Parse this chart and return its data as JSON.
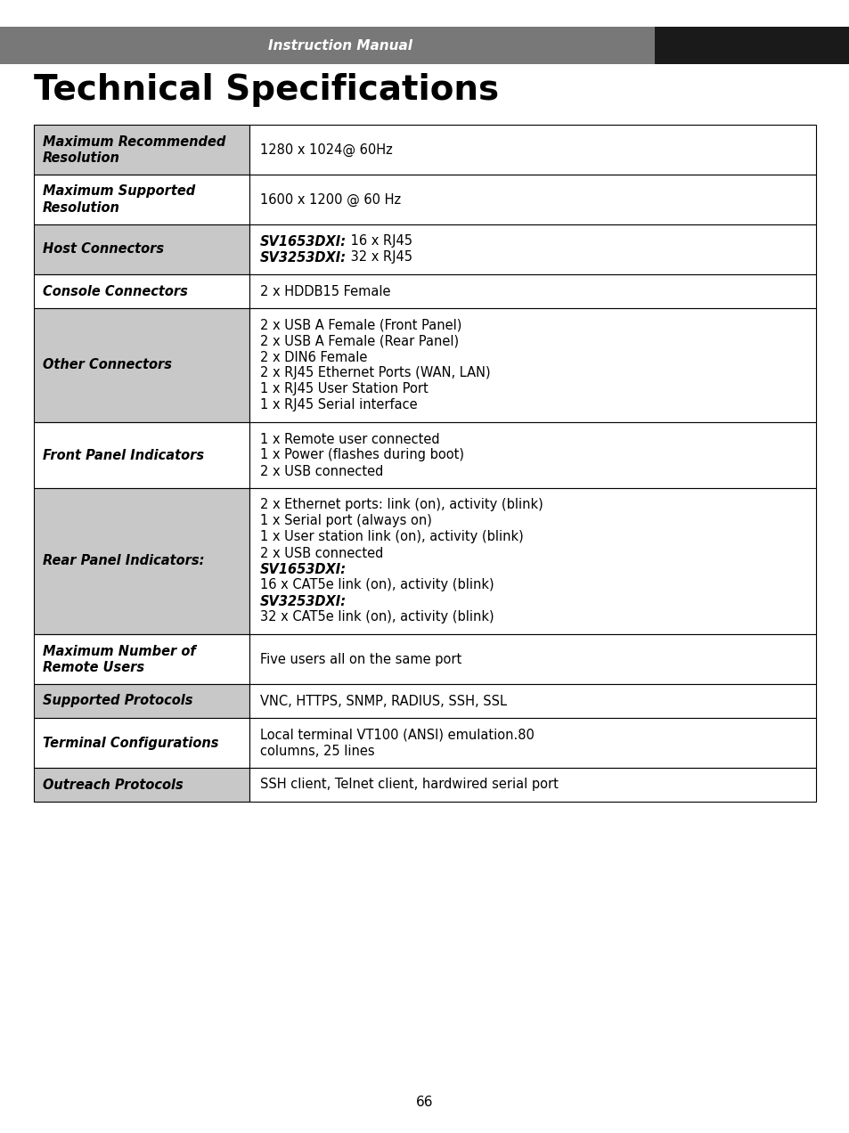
{
  "page_bg": "#ffffff",
  "header_bar_color1": "#787878",
  "header_bar_color2": "#1a1a1a",
  "header_text": "Instruction Manual",
  "title": "Technical Specifications",
  "left_col_bg": "#c8c8c8",
  "right_col_bg": "#ffffff",
  "border_color": "#000000",
  "page_number": "66",
  "rows": [
    {
      "left": "Maximum Recommended\nResolution",
      "right_lines": [
        [
          {
            "bold": false,
            "italic": false,
            "text": "1280 x 1024@ 60Hz"
          }
        ]
      ]
    },
    {
      "left": "Maximum Supported\nResolution",
      "right_lines": [
        [
          {
            "bold": false,
            "italic": false,
            "text": "1600 x 1200 @ 60 Hz"
          }
        ]
      ]
    },
    {
      "left": "Host Connectors",
      "right_lines": [
        [
          {
            "bold": true,
            "italic": true,
            "text": "SV1653DXI:"
          },
          {
            "bold": false,
            "italic": false,
            "text": " 16 x RJ45"
          }
        ],
        [
          {
            "bold": true,
            "italic": true,
            "text": "SV3253DXI:"
          },
          {
            "bold": false,
            "italic": false,
            "text": " 32 x RJ45"
          }
        ]
      ]
    },
    {
      "left": "Console Connectors",
      "right_lines": [
        [
          {
            "bold": false,
            "italic": false,
            "text": "2 x HDDB15 Female"
          }
        ]
      ]
    },
    {
      "left": "Other Connectors",
      "right_lines": [
        [
          {
            "bold": false,
            "italic": false,
            "text": "2 x USB A Female (Front Panel)"
          }
        ],
        [
          {
            "bold": false,
            "italic": false,
            "text": "2 x USB A Female (Rear Panel)"
          }
        ],
        [
          {
            "bold": false,
            "italic": false,
            "text": "2 x DIN6 Female"
          }
        ],
        [
          {
            "bold": false,
            "italic": false,
            "text": "2 x RJ45 Ethernet Ports (WAN, LAN)"
          }
        ],
        [
          {
            "bold": false,
            "italic": false,
            "text": "1 x RJ45 User Station Port"
          }
        ],
        [
          {
            "bold": false,
            "italic": false,
            "text": "1 x RJ45 Serial interface"
          }
        ]
      ]
    },
    {
      "left": "Front Panel Indicators",
      "right_lines": [
        [
          {
            "bold": false,
            "italic": false,
            "text": "1 x Remote user connected"
          }
        ],
        [
          {
            "bold": false,
            "italic": false,
            "text": "1 x Power (flashes during boot)"
          }
        ],
        [
          {
            "bold": false,
            "italic": false,
            "text": "2 x USB connected"
          }
        ]
      ]
    },
    {
      "left": "Rear Panel Indicators:",
      "right_lines": [
        [
          {
            "bold": false,
            "italic": false,
            "text": "2 x Ethernet ports: link (on), activity (blink)"
          }
        ],
        [
          {
            "bold": false,
            "italic": false,
            "text": "1 x Serial port (always on)"
          }
        ],
        [
          {
            "bold": false,
            "italic": false,
            "text": "1 x User station link (on), activity (blink)"
          }
        ],
        [
          {
            "bold": false,
            "italic": false,
            "text": "2 x USB connected"
          }
        ],
        [
          {
            "bold": true,
            "italic": true,
            "text": "SV1653DXI:"
          }
        ],
        [
          {
            "bold": false,
            "italic": false,
            "text": "16 x CAT5e link (on), activity (blink)"
          }
        ],
        [
          {
            "bold": true,
            "italic": true,
            "text": "SV3253DXI:"
          }
        ],
        [
          {
            "bold": false,
            "italic": false,
            "text": "32 x CAT5e link (on), activity (blink)"
          }
        ]
      ]
    },
    {
      "left": "Maximum Number of\nRemote Users",
      "right_lines": [
        [
          {
            "bold": false,
            "italic": false,
            "text": "Five users all on the same port"
          }
        ]
      ]
    },
    {
      "left": "Supported Protocols",
      "right_lines": [
        [
          {
            "bold": false,
            "italic": false,
            "text": "VNC, HTTPS, SNMP, RADIUS, SSH, SSL"
          }
        ]
      ]
    },
    {
      "left": "Terminal Configurations",
      "right_lines": [
        [
          {
            "bold": false,
            "italic": false,
            "text": "Local terminal VT100 (ANSI) emulation.80"
          }
        ],
        [
          {
            "bold": false,
            "italic": false,
            "text": "columns, 25 lines"
          }
        ]
      ]
    },
    {
      "left": "Outreach Protocols",
      "right_lines": [
        [
          {
            "bold": false,
            "italic": false,
            "text": "SSH client, Telnet client, hardwired serial port"
          }
        ]
      ]
    }
  ]
}
